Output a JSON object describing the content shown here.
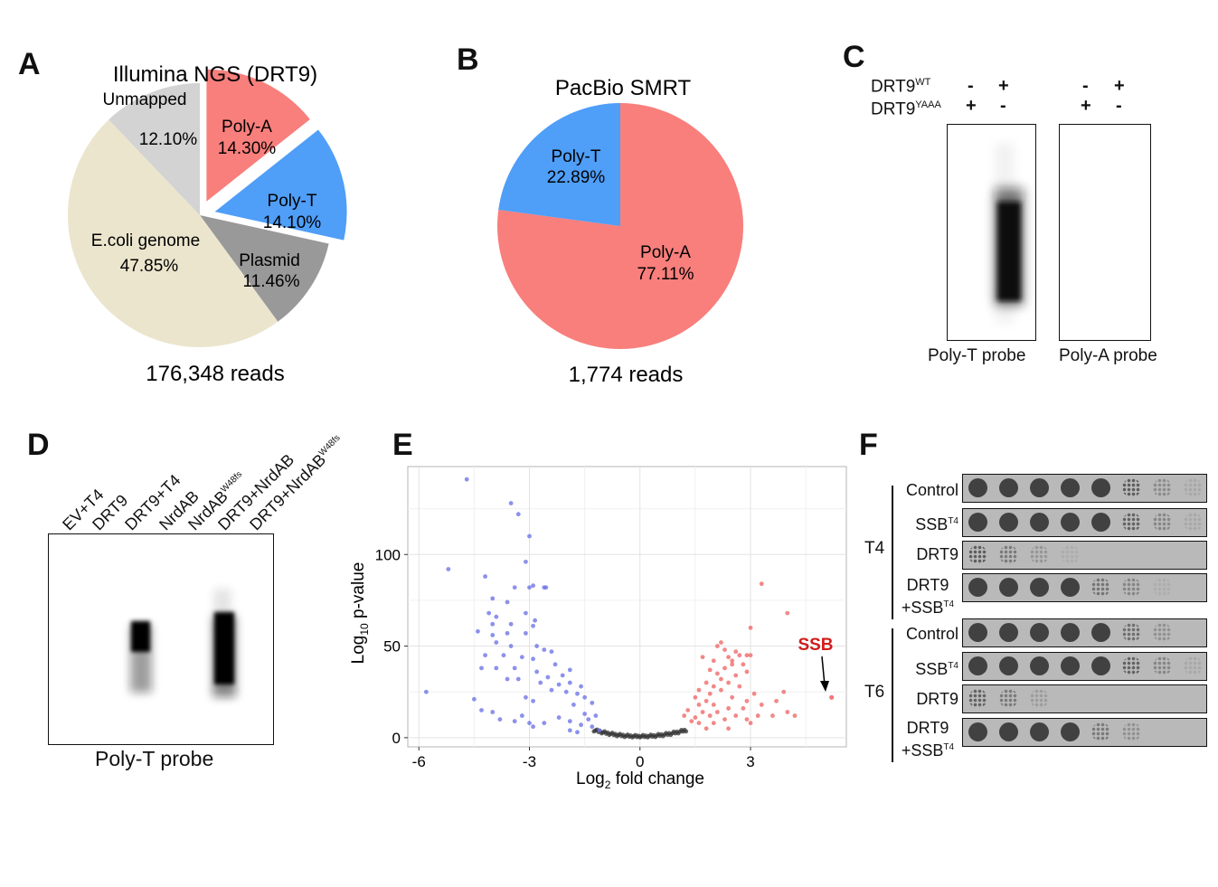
{
  "panels": {
    "A": {
      "letter": "A",
      "title": "Illumina NGS (DRT9)",
      "total": "176,348 reads",
      "chart_data": {
        "type": "pie",
        "title": "Illumina NGS (DRT9)",
        "slices": [
          {
            "label": "Poly-A",
            "value": 14.3,
            "text": "14.30%",
            "color": "#f87f7c",
            "exploded": true
          },
          {
            "label": "Poly-T",
            "value": 14.1,
            "text": "14.10%",
            "color": "#4f9ef8",
            "exploded": true
          },
          {
            "label": "Plasmid",
            "value": 11.46,
            "text": "11.46%",
            "color": "#999999",
            "exploded": false
          },
          {
            "label": "E.coli genome",
            "value": 47.85,
            "text": "47.85%",
            "color": "#ebe5cd",
            "exploded": false
          },
          {
            "label": "Unmapped",
            "value": 12.1,
            "text": "12.10%",
            "color": "#d3d3d3",
            "exploded": false
          }
        ]
      }
    },
    "B": {
      "letter": "B",
      "title": "PacBio SMRT",
      "total": "1,774 reads",
      "chart_data": {
        "type": "pie",
        "title": "PacBio SMRT",
        "slices": [
          {
            "label": "Poly-A",
            "value": 77.11,
            "text": "77.11%",
            "color": "#f87f7c"
          },
          {
            "label": "Poly-T",
            "value": 22.89,
            "text": "22.89%",
            "color": "#4f9ef8"
          }
        ]
      }
    },
    "C": {
      "letter": "C",
      "row1_label": "DRT9",
      "row1_sup": "WT",
      "row2_label": "DRT9",
      "row2_sup": "YAAA",
      "row1_signs": [
        "-",
        "+",
        "-",
        "+"
      ],
      "row2_signs": [
        "+",
        "-",
        "+",
        "-"
      ],
      "probe_left": "Poly-T probe",
      "probe_right": "Poly-A probe"
    },
    "D": {
      "letter": "D",
      "lanes": [
        {
          "text": "EV+T4",
          "sup": ""
        },
        {
          "text": "DRT9",
          "sup": ""
        },
        {
          "text": "DRT9+T4",
          "sup": ""
        },
        {
          "text": "NrdAB",
          "sup": ""
        },
        {
          "text": "NrdAB",
          "sup": "W48fs"
        },
        {
          "text": "DRT9+NrdAB",
          "sup": ""
        },
        {
          "text": "DRT9+NrdAB",
          "sup": "W48fs"
        }
      ],
      "probe": "Poly-T probe"
    },
    "E": {
      "letter": "E",
      "annotation": "SSB",
      "chart_data": {
        "type": "scatter",
        "xlabel_base": "Log",
        "xlabel_sub": "2",
        "xlabel_rest": " fold change",
        "ylabel_base": "Log",
        "ylabel_sub": "10",
        "ylabel_rest": " p-value",
        "xlim": [
          -6.3,
          5.6
        ],
        "ylim": [
          -5,
          148
        ],
        "xticks": [
          -6,
          -3,
          0,
          3
        ],
        "yticks": [
          0,
          50,
          100
        ],
        "colors": {
          "down": "#6f75e6",
          "up": "#ef6a6a",
          "ns": "#333333"
        },
        "highlight": {
          "name": "SSB",
          "x": 5.2,
          "y": 22
        },
        "points": [
          [
            -4.7,
            141
          ],
          [
            -5.2,
            92
          ],
          [
            -5.8,
            25
          ],
          [
            -3.5,
            128
          ],
          [
            -3.3,
            122
          ],
          [
            -3.0,
            110
          ],
          [
            -3.1,
            96
          ],
          [
            -4.2,
            88
          ],
          [
            -3.4,
            82
          ],
          [
            -3.0,
            82
          ],
          [
            -2.9,
            83
          ],
          [
            -2.6,
            82
          ],
          [
            -2.55,
            82
          ],
          [
            -4.0,
            76
          ],
          [
            -3.6,
            74
          ],
          [
            -4.1,
            68
          ],
          [
            -3.9,
            66
          ],
          [
            -3.1,
            68
          ],
          [
            -2.85,
            64
          ],
          [
            -4.0,
            62
          ],
          [
            -3.5,
            62
          ],
          [
            -2.9,
            61
          ],
          [
            -4.4,
            58
          ],
          [
            -4.0,
            56
          ],
          [
            -3.6,
            57
          ],
          [
            -3.1,
            57
          ],
          [
            -3.9,
            52
          ],
          [
            -3.5,
            50
          ],
          [
            -2.8,
            50
          ],
          [
            -2.4,
            47
          ],
          [
            -2.6,
            48
          ],
          [
            -4.2,
            45
          ],
          [
            -3.7,
            45
          ],
          [
            -3.2,
            44
          ],
          [
            -2.9,
            43
          ],
          [
            -2.3,
            40
          ],
          [
            -4.3,
            38
          ],
          [
            -3.9,
            38
          ],
          [
            -3.4,
            38
          ],
          [
            -2.8,
            36
          ],
          [
            -2.1,
            34
          ],
          [
            -1.9,
            37
          ],
          [
            -2.5,
            33
          ],
          [
            -3.6,
            32
          ],
          [
            -3.3,
            32
          ],
          [
            -2.7,
            30
          ],
          [
            -2.2,
            29
          ],
          [
            -1.9,
            30
          ],
          [
            -1.6,
            28
          ],
          [
            -2.4,
            26
          ],
          [
            -2.0,
            25
          ],
          [
            -1.7,
            24
          ],
          [
            -1.5,
            22
          ],
          [
            -4.5,
            21
          ],
          [
            -3.1,
            22
          ],
          [
            -2.9,
            20
          ],
          [
            -1.3,
            19
          ],
          [
            -1.8,
            18
          ],
          [
            -4.3,
            15
          ],
          [
            -4.0,
            14
          ],
          [
            -3.2,
            12
          ],
          [
            -3.8,
            10
          ],
          [
            -3.4,
            9
          ],
          [
            -3.0,
            8
          ],
          [
            -2.9,
            6
          ],
          [
            -2.6,
            8
          ],
          [
            -2.2,
            11
          ],
          [
            -1.9,
            9
          ],
          [
            -1.5,
            13
          ],
          [
            -1.4,
            10
          ],
          [
            -1.2,
            12
          ],
          [
            -1.6,
            7
          ],
          [
            -1.9,
            4
          ],
          [
            -1.3,
            6
          ],
          [
            -1.1,
            4
          ],
          [
            -1.7,
            3
          ],
          [
            1.2,
            12
          ],
          [
            1.4,
            9
          ],
          [
            1.3,
            15
          ],
          [
            1.5,
            11
          ],
          [
            1.6,
            18
          ],
          [
            1.7,
            14
          ],
          [
            1.8,
            20
          ],
          [
            1.5,
            22
          ],
          [
            1.9,
            24
          ],
          [
            1.6,
            26
          ],
          [
            2.0,
            28
          ],
          [
            1.8,
            30
          ],
          [
            2.2,
            32
          ],
          [
            2.1,
            35
          ],
          [
            1.9,
            37
          ],
          [
            2.3,
            38
          ],
          [
            2.5,
            40
          ],
          [
            2.0,
            42
          ],
          [
            1.7,
            44
          ],
          [
            2.4,
            44
          ],
          [
            2.7,
            45
          ],
          [
            2.9,
            45
          ],
          [
            3.0,
            45
          ],
          [
            2.6,
            47
          ],
          [
            2.3,
            48
          ],
          [
            2.1,
            50
          ],
          [
            2.2,
            52
          ],
          [
            2.5,
            42
          ],
          [
            2.8,
            40
          ],
          [
            2.9,
            36
          ],
          [
            2.6,
            34
          ],
          [
            2.4,
            30
          ],
          [
            2.7,
            28
          ],
          [
            2.2,
            26
          ],
          [
            2.5,
            22
          ],
          [
            2.9,
            20
          ],
          [
            3.1,
            24
          ],
          [
            2.0,
            18
          ],
          [
            2.4,
            16
          ],
          [
            2.8,
            16
          ],
          [
            3.3,
            18
          ],
          [
            3.7,
            20
          ],
          [
            2.1,
            14
          ],
          [
            1.9,
            12
          ],
          [
            2.6,
            12
          ],
          [
            3.2,
            12
          ],
          [
            3.6,
            12
          ],
          [
            4.2,
            12
          ],
          [
            2.3,
            10
          ],
          [
            2.9,
            10
          ],
          [
            1.6,
            8
          ],
          [
            2.0,
            8
          ],
          [
            3.0,
            60
          ],
          [
            3.3,
            84
          ],
          [
            4.0,
            68
          ],
          [
            3.9,
            25
          ],
          [
            4.0,
            14
          ],
          [
            2.4,
            5
          ],
          [
            1.8,
            5
          ],
          [
            3.0,
            8
          ]
        ]
      }
    },
    "F": {
      "letter": "F",
      "group1": "T4",
      "group2": "T6",
      "rows": [
        {
          "label": "Control",
          "sup": "",
          "label2": "",
          "sup2": "",
          "spots": [
            1,
            1,
            1,
            1,
            1,
            0.8,
            0.4,
            0.15
          ]
        },
        {
          "label": "SSB",
          "sup": "T4",
          "label2": "",
          "sup2": "",
          "spots": [
            1,
            1,
            1,
            1,
            1,
            0.75,
            0.45,
            0.15
          ]
        },
        {
          "label": "DRT9",
          "sup": "",
          "label2": "",
          "sup2": "",
          "spots": [
            0.8,
            0.55,
            0.3,
            0.1,
            0,
            0,
            0,
            0
          ]
        },
        {
          "label": "DRT9",
          "sup": "",
          "label2": "+SSB",
          "sup2": "T4",
          "spots": [
            1,
            1,
            1,
            1,
            0.6,
            0.45,
            0.1,
            0
          ]
        },
        {
          "label": "Control",
          "sup": "",
          "label2": "",
          "sup2": "",
          "spots": [
            1,
            1,
            1,
            1,
            1,
            0.65,
            0.35,
            0
          ]
        },
        {
          "label": "SSB",
          "sup": "T4",
          "label2": "",
          "sup2": "",
          "spots": [
            1,
            1,
            1,
            1,
            1,
            0.75,
            0.45,
            0.15
          ]
        },
        {
          "label": "DRT9",
          "sup": "",
          "label2": "",
          "sup2": "",
          "spots": [
            0.75,
            0.55,
            0.25,
            0,
            0,
            0,
            0,
            0
          ]
        },
        {
          "label": "DRT9",
          "sup": "",
          "label2": "+SSB",
          "sup2": "T4",
          "spots": [
            1,
            1,
            1,
            1,
            0.55,
            0.35,
            0,
            0
          ]
        }
      ]
    }
  }
}
